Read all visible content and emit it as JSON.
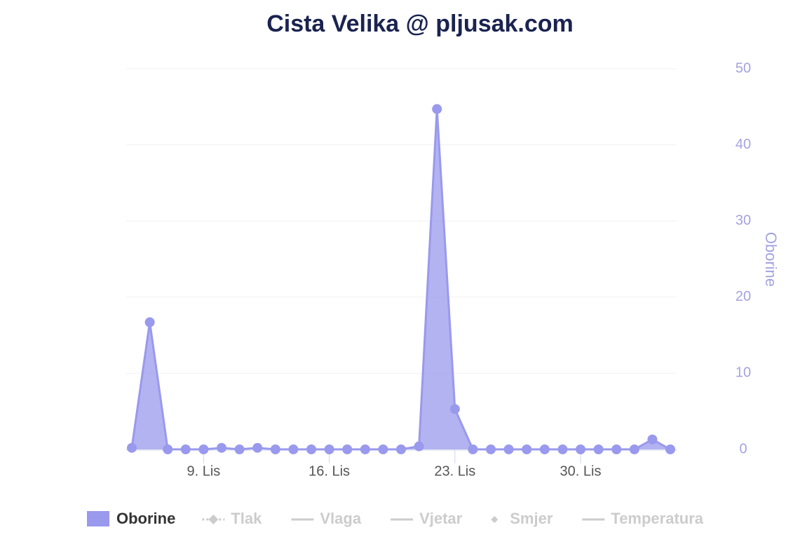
{
  "chart_data": {
    "type": "area",
    "title": "Cista Velika @ pljusak.com",
    "categories": [
      null,
      null,
      null,
      null,
      "9. Lis",
      null,
      null,
      null,
      null,
      null,
      null,
      "16. Lis",
      null,
      null,
      null,
      null,
      null,
      null,
      "23. Lis",
      null,
      null,
      null,
      null,
      null,
      null,
      "30. Lis",
      null,
      null,
      null,
      null,
      null
    ],
    "series": [
      {
        "name": "Oborine",
        "color": "#9999ee",
        "values": [
          0.2,
          16.7,
          0,
          0,
          0,
          0.2,
          0,
          0.2,
          0,
          0,
          0,
          0,
          0,
          0,
          0,
          0,
          0.4,
          44.7,
          5.3,
          0,
          0,
          0,
          0,
          0,
          0,
          0,
          0,
          0,
          0,
          1.3,
          0
        ]
      }
    ],
    "hidden_series": [
      {
        "name": "Tlak",
        "symbol": "dotted-diamond"
      },
      {
        "name": "Vlaga",
        "symbol": "line"
      },
      {
        "name": "Vjetar",
        "symbol": "line"
      },
      {
        "name": "Smjer",
        "symbol": "diamond"
      },
      {
        "name": "Temperatura",
        "symbol": "line"
      }
    ],
    "y_axis_side": "right",
    "ylabel": "Oborine",
    "ylim": [
      0,
      50
    ],
    "yticks": [
      0,
      10,
      20,
      30,
      40,
      50
    ],
    "grid": true
  }
}
